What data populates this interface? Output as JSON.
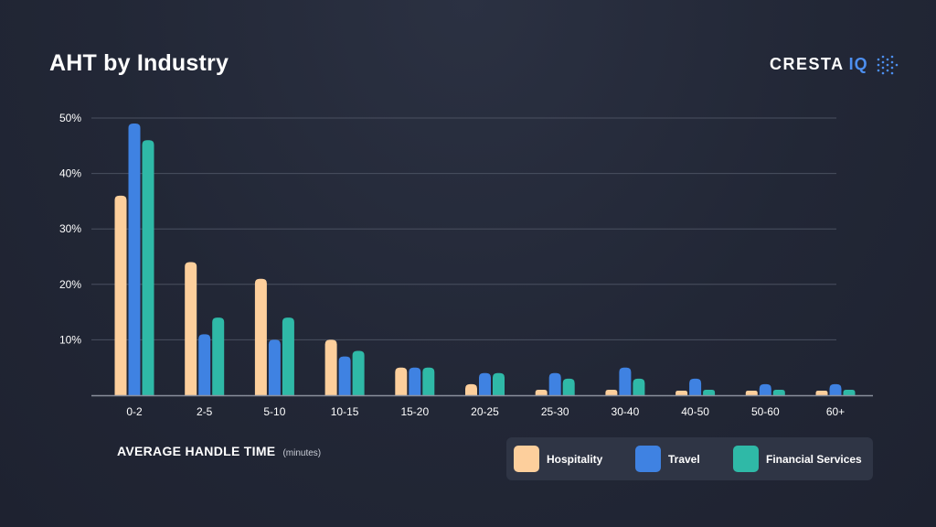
{
  "header": {
    "title": "AHT by Industry",
    "brand_word": "CRESTA",
    "brand_accent": "IQ"
  },
  "colors": {
    "background": "#232837",
    "gridline": "#4a5060",
    "axis": "#8a8f9c",
    "hospitality": "#fdcf9c",
    "travel": "#3f82e2",
    "financial_services": "#2fb9a7"
  },
  "chart_data": {
    "type": "bar",
    "title": "AHT by Industry",
    "xlabel": "AVERAGE HANDLE TIME",
    "xlabel_unit": "(minutes)",
    "ylabel": "",
    "ylim": [
      0,
      50
    ],
    "yticks": [
      10,
      20,
      30,
      40,
      50
    ],
    "ytick_labels": [
      "10%",
      "20%",
      "30%",
      "40%",
      "50%"
    ],
    "grid": true,
    "legend_position": "bottom-right",
    "categories": [
      "0-2",
      "2-5",
      "5-10",
      "10-15",
      "15-20",
      "20-25",
      "25-30",
      "30-40",
      "40-50",
      "50-60",
      "60+"
    ],
    "series": [
      {
        "name": "Hospitality",
        "color": "#fdcf9c",
        "values": [
          36,
          24,
          21,
          10,
          5,
          2,
          1,
          1,
          0.5,
          0.3,
          0.5
        ]
      },
      {
        "name": "Travel",
        "color": "#3f82e2",
        "values": [
          49,
          11,
          10,
          7,
          5,
          4,
          4,
          5,
          3,
          2,
          2
        ]
      },
      {
        "name": "Financial Services",
        "color": "#2fb9a7",
        "values": [
          46,
          14,
          14,
          8,
          5,
          4,
          3,
          3,
          1,
          1,
          1
        ]
      }
    ]
  }
}
